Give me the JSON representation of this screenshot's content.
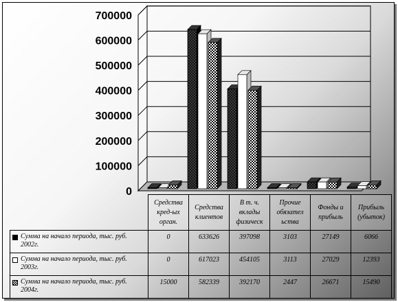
{
  "chart_data": {
    "type": "bar",
    "categories": [
      "Средства кред-ых орган.",
      "Средства клиентов",
      "В т. ч. вклады физическ",
      "Прочие обязател ьства",
      "Фонды и прибыль",
      "Прибыль (убыток)"
    ],
    "series": [
      {
        "name": "Сумма на начало периода,  тыс. руб. 2002г.",
        "values": [
          0,
          633626,
          397098,
          3103,
          27149,
          6066
        ],
        "pattern": "dark-dotted",
        "color": "#1a1a1a"
      },
      {
        "name": "Сумма на начало периода,  тыс. руб. 2003г.",
        "values": [
          0,
          617023,
          454105,
          3113,
          27029,
          12393
        ],
        "pattern": "white",
        "color": "#ffffff"
      },
      {
        "name": "Сумма на начало периода,  тыс. руб.  2004г.",
        "values": [
          15000,
          582339,
          392170,
          2447,
          26671,
          15490
        ],
        "pattern": "checker",
        "color": "#3a3a3a"
      }
    ],
    "yticks": [
      "700000",
      "600000",
      "500000",
      "400000",
      "300000",
      "200000",
      "100000",
      "0"
    ],
    "ylim": [
      0,
      700000
    ],
    "grid": true,
    "legend": "table-below",
    "style": "3d-clustered-columns"
  }
}
